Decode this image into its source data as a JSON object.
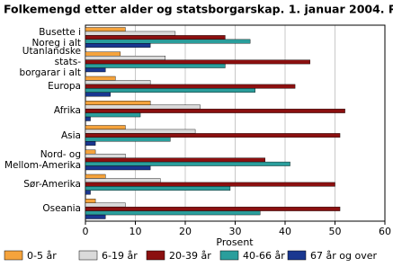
{
  "chart_data": {
    "type": "hbar",
    "title": "Folkemengd etter alder og statsborgarskap. 1. januar 2004. Prosent",
    "x_label": "Prosent",
    "categories": [
      "Busette i\nNoreg i alt",
      "Utanlandske stats-\nborgarar i alt",
      "Europa",
      "Afrika",
      "Asia",
      "Nord- og\nMellom-Amerika",
      "Sør-Amerika",
      "Oseania"
    ],
    "series": [
      {
        "name": "0-5 år",
        "color": "#f5a33c",
        "values": [
          8,
          7,
          6,
          13,
          8,
          2,
          4,
          2
        ]
      },
      {
        "name": "6-19 år",
        "color": "#dadada",
        "values": [
          18,
          16,
          13,
          23,
          22,
          8,
          15,
          8
        ]
      },
      {
        "name": "20-39 år",
        "color": "#8b1010",
        "values": [
          28,
          45,
          42,
          52,
          51,
          36,
          50,
          51
        ]
      },
      {
        "name": "40-66 år",
        "color": "#2a9e9c",
        "values": [
          33,
          28,
          34,
          11,
          17,
          41,
          29,
          35
        ]
      },
      {
        "name": "67 år og over",
        "color": "#1a3790",
        "values": [
          13,
          4,
          5,
          1,
          2,
          13,
          1,
          4
        ]
      }
    ],
    "xlim": [
      0,
      60
    ],
    "xticks": [
      0,
      10,
      20,
      30,
      40,
      50,
      60
    ],
    "grid": true,
    "legend": "bottom"
  }
}
